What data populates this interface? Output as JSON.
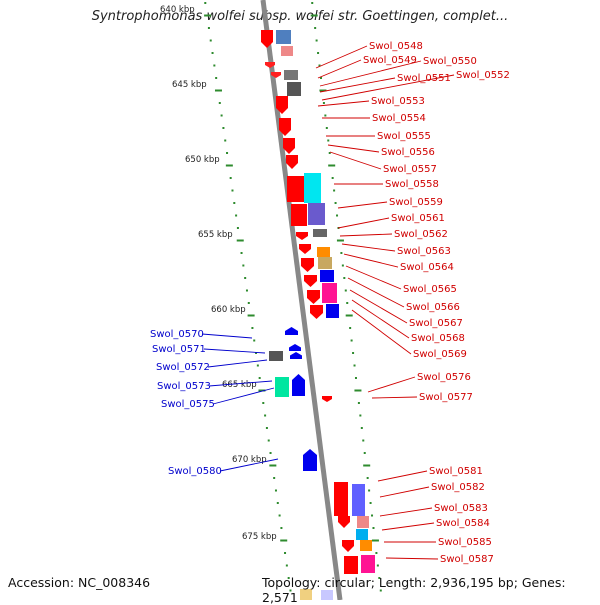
{
  "title": "Syntrophomonas wolfei subsp. wolfei str. Goettingen, complet...",
  "footer": {
    "accession": "Accession: NC_008346",
    "topology": "Topology: circular; Length: 2,936,195 bp; Genes: 2,571"
  },
  "colors": {
    "forward_gene": "#ff0000",
    "reverse_gene": "#0000ee",
    "label_forward": "#d00000",
    "label_reverse": "#0000cc",
    "backbone": "#888888",
    "tick": "#2e8b2e"
  },
  "scale_labels": [
    "640 kbp",
    "645 kbp",
    "650 kbp",
    "655 kbp",
    "660 kbp",
    "665 kbp",
    "670 kbp",
    "675 kbp"
  ],
  "forward_genes": [
    "Swol_0548",
    "Swol_0549",
    "Swol_0550",
    "Swol_0551",
    "Swol_0552",
    "Swol_0553",
    "Swol_0554",
    "Swol_0555",
    "Swol_0556",
    "Swol_0557",
    "Swol_0558",
    "Swol_0559",
    "Swol_0561",
    "Swol_0562",
    "Swol_0563",
    "Swol_0564",
    "Swol_0565",
    "Swol_0566",
    "Swol_0567",
    "Swol_0568",
    "Swol_0569",
    "Swol_0576",
    "Swol_0577",
    "Swol_0581",
    "Swol_0582",
    "Swol_0583",
    "Swol_0584",
    "Swol_0585",
    "Swol_0587"
  ],
  "reverse_genes": [
    "Swol_0570",
    "Swol_0571",
    "Swol_0572",
    "Swol_0573",
    "Swol_0575",
    "Swol_0580"
  ]
}
